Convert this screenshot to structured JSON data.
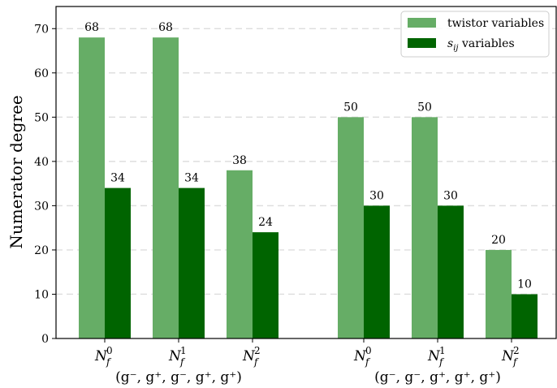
{
  "chart_data": {
    "type": "bar",
    "ylabel": "Numerator degree",
    "ylim": [
      0,
      75
    ],
    "yticks": [
      0,
      10,
      20,
      30,
      40,
      50,
      60,
      70
    ],
    "grid": "y-dashed",
    "legend_position": "top-right",
    "categories": [
      {
        "base": "N",
        "sub": "f",
        "sup": "0"
      },
      {
        "base": "N",
        "sub": "f",
        "sup": "1"
      },
      {
        "base": "N",
        "sub": "f",
        "sup": "2"
      },
      {
        "base": "N",
        "sub": "f",
        "sup": "0"
      },
      {
        "base": "N",
        "sub": "f",
        "sup": "1"
      },
      {
        "base": "N",
        "sub": "f",
        "sup": "2"
      }
    ],
    "groups": [
      {
        "label": "(g⁻, g⁺, g⁻, g⁺, g⁺)",
        "category_indices": [
          0,
          1,
          2
        ]
      },
      {
        "label": "(g⁻, g⁻, g⁺, g⁺, g⁺)",
        "category_indices": [
          3,
          4,
          5
        ]
      }
    ],
    "series": [
      {
        "name": "twistor variables",
        "values": [
          68,
          68,
          38,
          50,
          50,
          20
        ],
        "color": "#66ad66"
      },
      {
        "name": "s_ij variables",
        "legend_base": "s",
        "legend_sub": "ij",
        "legend_tail": " variables",
        "values": [
          34,
          34,
          24,
          30,
          30,
          10
        ],
        "color": "#006400"
      }
    ]
  }
}
